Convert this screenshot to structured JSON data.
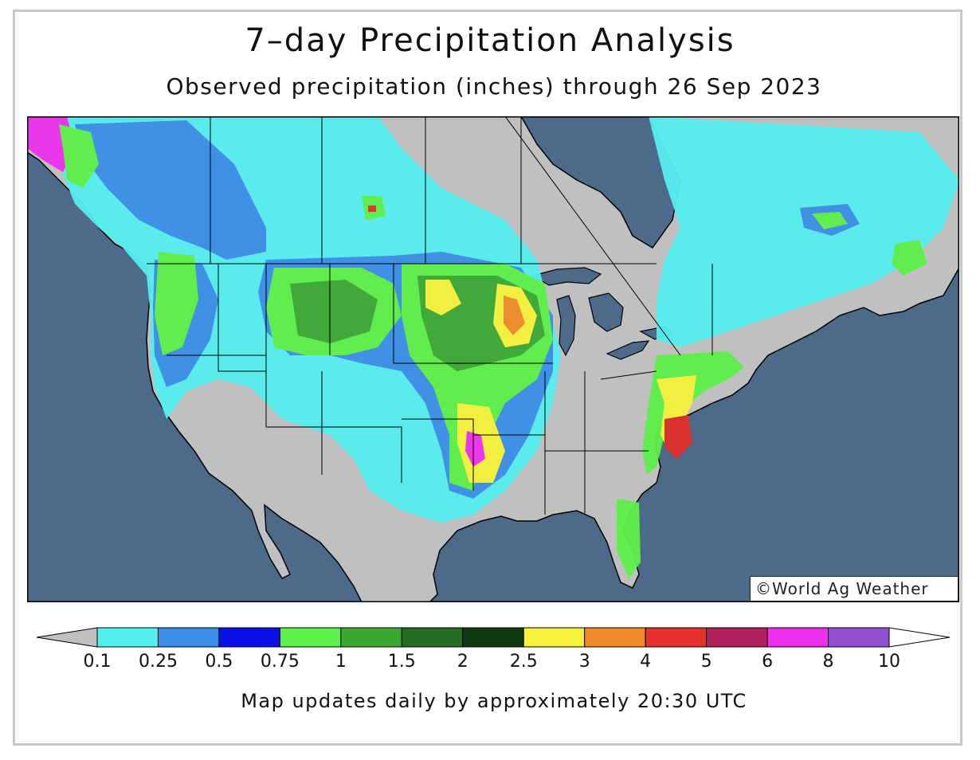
{
  "title": "7–day Precipitation Analysis",
  "subtitle": "Observed precipitation (inches) through 26 Sep 2023",
  "copyright": "©World Ag Weather",
  "footer": "Map updates daily by approximately 20:30 UTC",
  "legend": {
    "units": "inches",
    "tick_labels": [
      "0.1",
      "0.25",
      "0.5",
      "0.75",
      "1",
      "1.5",
      "2",
      "2.5",
      "3",
      "4",
      "5",
      "6",
      "8",
      "10"
    ],
    "colors": [
      "#55eef0",
      "#3a8ee8",
      "#0a10e8",
      "#5ef04a",
      "#3aa833",
      "#236e22",
      "#0f3a10",
      "#f6f23a",
      "#ee8a2a",
      "#e2302a",
      "#b0205a",
      "#ee30ee",
      "#9050d0"
    ],
    "below_min_color": "#c0c0c0",
    "above_max_color": "#ffffff"
  },
  "map": {
    "ocean_color": "#4d6a8a",
    "land_color": "#c0c0c0",
    "border_color": "#000000"
  }
}
